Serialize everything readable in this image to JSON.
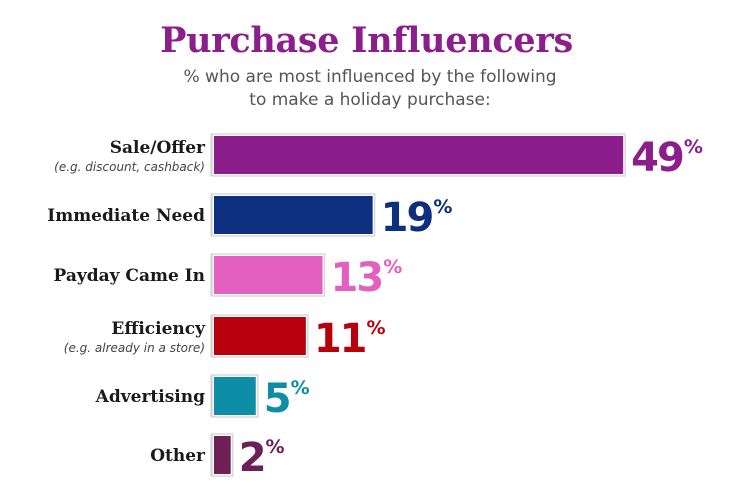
{
  "chart_data": {
    "type": "bar",
    "orientation": "horizontal",
    "title": "Purchase Influencers",
    "subtitle_lines": [
      "% who are most influenced by the following",
      "to make a holiday purchase:"
    ],
    "unit": "%",
    "categories": [
      "Sale/Offer",
      "Immediate Need",
      "Payday Came In",
      "Efficiency",
      "Advertising",
      "Other"
    ],
    "sublabels": [
      "(e.g. discount, cashback)",
      "",
      "",
      "(e.g. already in a store)",
      "",
      ""
    ],
    "values": [
      49,
      19,
      13,
      11,
      5,
      2
    ],
    "colors": [
      "#8b1e8b",
      "#0c2f7f",
      "#e35fc0",
      "#b8000d",
      "#0e8ea6",
      "#6e1f55"
    ],
    "grid": false,
    "legend": "none"
  }
}
